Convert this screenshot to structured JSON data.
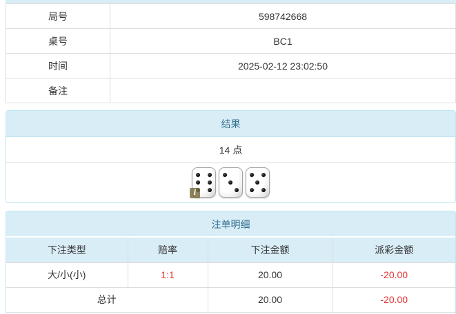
{
  "info_table": {
    "rows": [
      {
        "label": "局号",
        "value": "598742668"
      },
      {
        "label": "桌号",
        "value": "BC1"
      },
      {
        "label": "时间",
        "value": "2025-02-12 23:02:50"
      },
      {
        "label": "备注",
        "value": ""
      }
    ]
  },
  "result_panel": {
    "title": "结果",
    "points": "14 点",
    "dice": [
      6,
      3,
      5
    ],
    "info_badge": "i"
  },
  "bets_panel": {
    "title": "注单明细",
    "columns": [
      "下注类型",
      "赔率",
      "下注金额",
      "派彩金额"
    ],
    "rows": [
      {
        "type": "大/小(小)",
        "odds": "1:1",
        "bet": "20.00",
        "payout": "-20.00"
      }
    ],
    "total": {
      "label": "总计",
      "bet": "20.00",
      "payout": "-20.00"
    }
  },
  "colors": {
    "header_bg": "#d9edf7",
    "header_text": "#31708f",
    "panel_border": "#bce8f1",
    "table_border": "#dddddd",
    "text": "#333333",
    "negative": "#e53333"
  }
}
